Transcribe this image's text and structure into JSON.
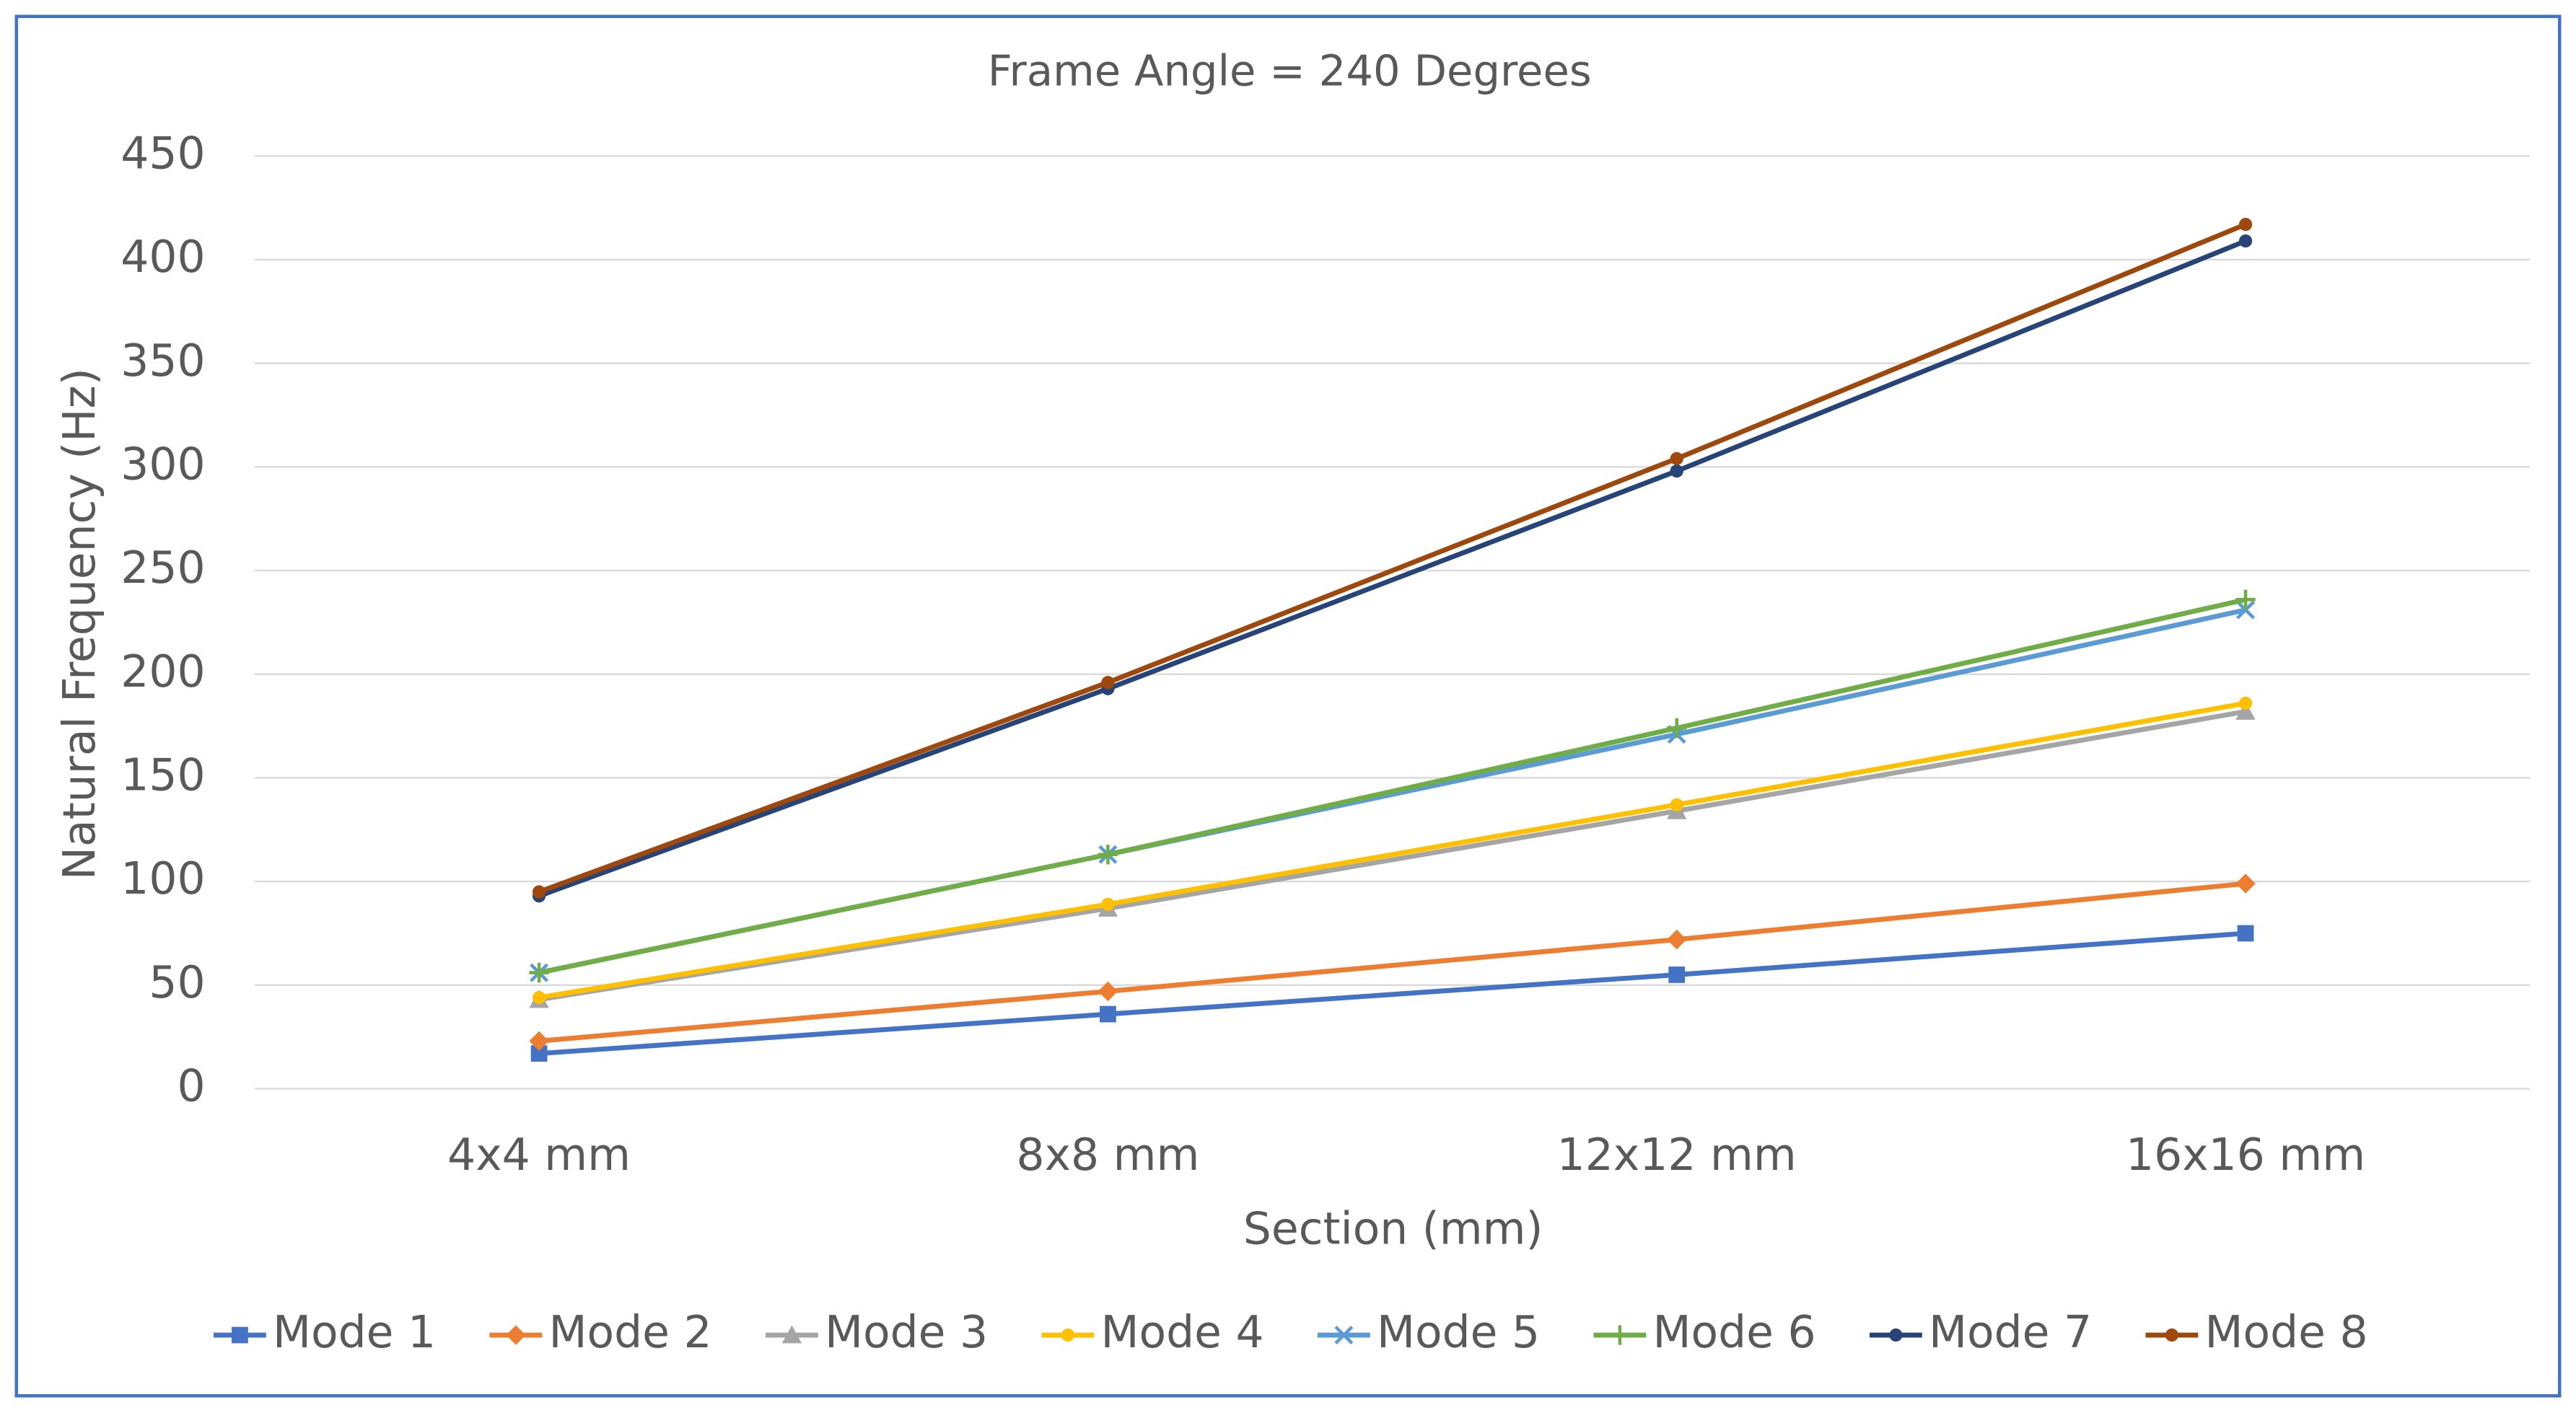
{
  "chart_data": {
    "type": "line",
    "title": "Frame Angle = 240 Degrees",
    "x_label": "Section (mm)",
    "y_label": "Natural Frequency (Hz)",
    "categories": [
      "4x4 mm",
      "8x8 mm",
      "12x12 mm",
      "16x16 mm"
    ],
    "series": [
      {
        "name": "Mode 1",
        "color": "#4472c4",
        "marker": "square",
        "values": [
          17,
          36,
          55,
          75
        ]
      },
      {
        "name": "Mode 2",
        "color": "#ed7d31",
        "marker": "diamond",
        "values": [
          23,
          47,
          72,
          99
        ]
      },
      {
        "name": "Mode 3",
        "color": "#a5a5a5",
        "marker": "triangle",
        "values": [
          43,
          87,
          134,
          182
        ]
      },
      {
        "name": "Mode 4",
        "color": "#ffc000",
        "marker": "circle",
        "values": [
          44,
          89,
          137,
          186
        ]
      },
      {
        "name": "Mode 5",
        "color": "#5b9bd5",
        "marker": "x",
        "values": [
          56,
          113,
          171,
          231
        ]
      },
      {
        "name": "Mode 6",
        "color": "#70ad47",
        "marker": "plus",
        "values": [
          56,
          113,
          174,
          236
        ]
      },
      {
        "name": "Mode 7",
        "color": "#264478",
        "marker": "circle",
        "values": [
          93,
          193,
          298,
          409
        ]
      },
      {
        "name": "Mode 8",
        "color": "#9e480e",
        "marker": "circle",
        "values": [
          95,
          196,
          304,
          417
        ]
      }
    ],
    "ylim": [
      0,
      450
    ],
    "yticks": [
      0,
      50,
      100,
      150,
      200,
      250,
      300,
      350,
      400,
      450
    ],
    "grid": true,
    "legend": "bottom"
  }
}
